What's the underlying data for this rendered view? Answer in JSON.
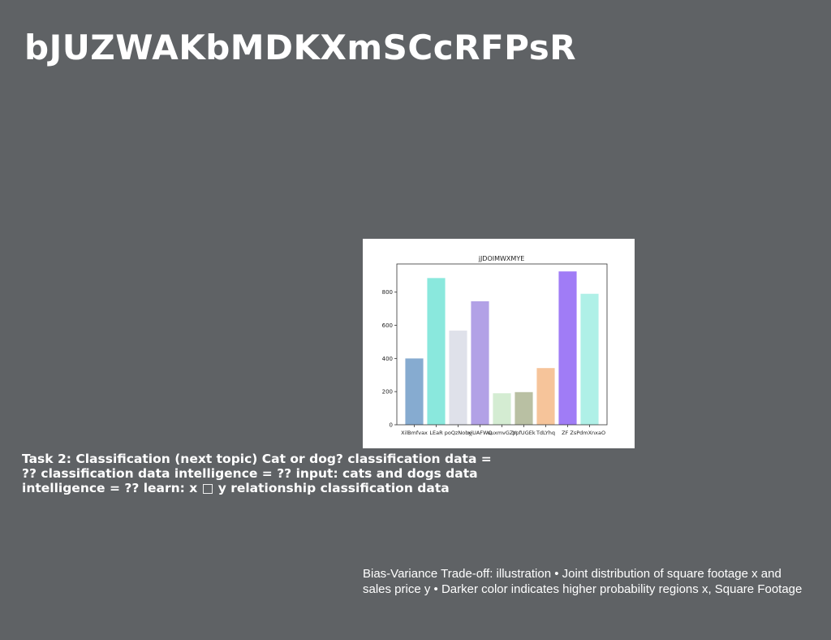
{
  "slide": {
    "title": "bJUZWAKbMDKXmSCcRFPsR",
    "task_text": "Task 2: Classification (next topic) Cat or dog? classification data = ?? classification data intelligence = ?? input: cats and dogs data intelligence = ?? learn: x □ y relationship classification data",
    "caption_line1": "Bias-Variance Trade-off: illustration • Joint distribution of square footage x and",
    "caption_line2": "sales price y • Darker color indicates higher probability regions x, Square Footage"
  },
  "chart_data": {
    "type": "bar",
    "title": "jJDOIMWXMYE",
    "xlabel": "",
    "ylabel": "",
    "categories": [
      "XilBmfvax",
      "LEaR",
      "poQzNoby",
      "xjUAFWQ",
      "uuxmvGZY",
      "ppfUGEk",
      "TdLYhq",
      "ZF Z",
      "sPdmXnxaO"
    ],
    "values": [
      400,
      885,
      568,
      745,
      190,
      197,
      342,
      925,
      790
    ],
    "colors": [
      "#86abd0",
      "#8ae8dd",
      "#dfe1ea",
      "#b2a1e6",
      "#d4ecd2",
      "#b9c0a3",
      "#f6c49a",
      "#a07cf6",
      "#aff0e7"
    ],
    "ylim": [
      0,
      970
    ],
    "yticks": [
      0,
      200,
      400,
      600,
      800
    ],
    "grid": false
  }
}
